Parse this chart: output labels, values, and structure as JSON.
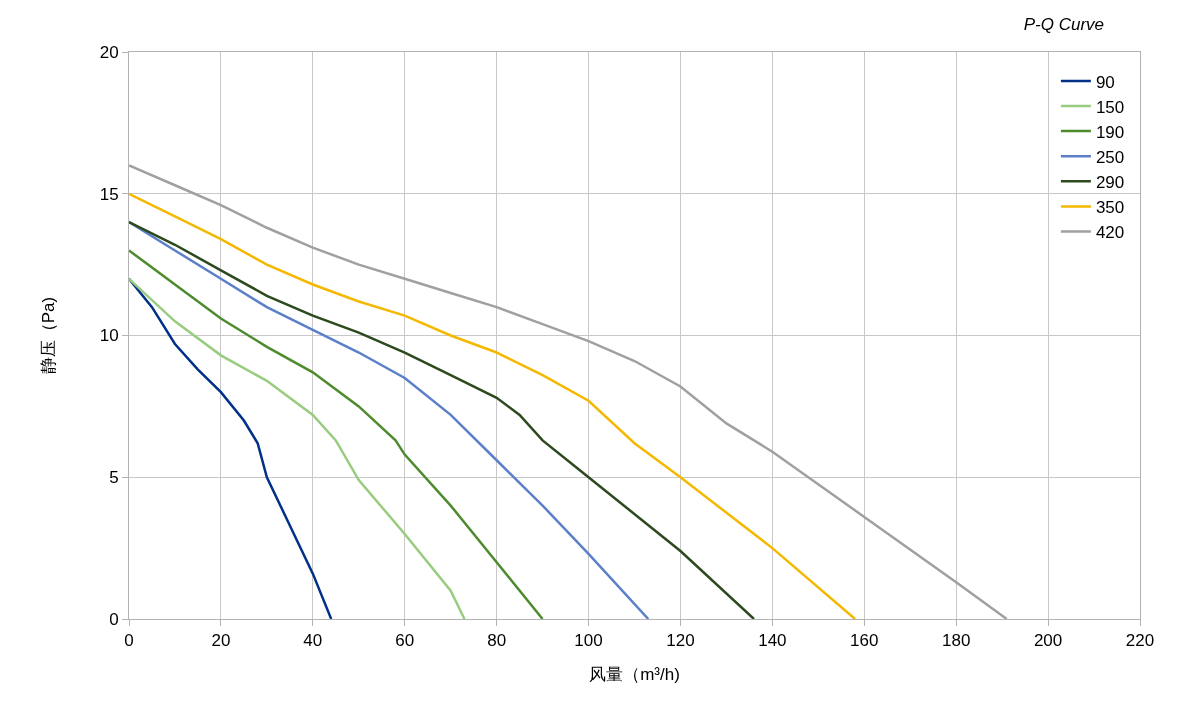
{
  "chart_data": {
    "type": "line",
    "title": "P-Q Curve",
    "xlabel": "风量（m³/h)",
    "ylabel": "静压（Pa)",
    "xlim": [
      0,
      220
    ],
    "xticks": [
      0,
      20,
      40,
      60,
      80,
      100,
      120,
      140,
      160,
      180,
      200,
      220
    ],
    "ylim": [
      0,
      20
    ],
    "yticks": [
      0,
      5,
      10,
      15,
      20
    ],
    "grid": true,
    "legend": "top right",
    "marker": "none",
    "line_style": "solid",
    "series": [
      {
        "name": "90",
        "color": "#003087",
        "x": [
          0,
          5,
          10,
          15,
          20,
          25,
          28,
          30,
          35,
          40,
          44
        ],
        "values": [
          12,
          11,
          9.7,
          8.8,
          8,
          7,
          6.2,
          5,
          3.3,
          1.6,
          0
        ]
      },
      {
        "name": "150",
        "color": "#99cc7f",
        "x": [
          0,
          10,
          20,
          30,
          40,
          45,
          50,
          60,
          70,
          73
        ],
        "values": [
          12,
          10.5,
          9.3,
          8.4,
          7.2,
          6.3,
          4.9,
          3,
          1,
          0
        ]
      },
      {
        "name": "190",
        "color": "#4e8a2e",
        "x": [
          0,
          10,
          20,
          30,
          40,
          50,
          58,
          60,
          70,
          80,
          90
        ],
        "values": [
          13,
          11.8,
          10.6,
          9.6,
          8.7,
          7.5,
          6.3,
          5.8,
          4,
          2,
          0
        ]
      },
      {
        "name": "250",
        "color": "#5b7fc8",
        "x": [
          0,
          10,
          20,
          30,
          40,
          50,
          60,
          70,
          80,
          90,
          100,
          113
        ],
        "values": [
          14,
          13,
          12,
          11,
          10.2,
          9.4,
          8.5,
          7.2,
          5.6,
          4,
          2.3,
          0
        ]
      },
      {
        "name": "290",
        "color": "#2c4a1e",
        "x": [
          0,
          10,
          20,
          30,
          40,
          50,
          60,
          70,
          80,
          85,
          90,
          100,
          120,
          136
        ],
        "values": [
          14,
          13.2,
          12.3,
          11.4,
          10.7,
          10.1,
          9.4,
          8.6,
          7.8,
          7.2,
          6.3,
          5,
          2.4,
          0
        ]
      },
      {
        "name": "350",
        "color": "#f5b800",
        "x": [
          0,
          10,
          20,
          30,
          40,
          50,
          60,
          70,
          80,
          90,
          100,
          110,
          120,
          140,
          158
        ],
        "values": [
          15,
          14.2,
          13.4,
          12.5,
          11.8,
          11.2,
          10.7,
          10,
          9.4,
          8.6,
          7.7,
          6.2,
          5,
          2.5,
          0
        ]
      },
      {
        "name": "420",
        "color": "#a0a0a0",
        "x": [
          0,
          10,
          20,
          30,
          40,
          50,
          60,
          70,
          80,
          90,
          100,
          110,
          120,
          130,
          140,
          160,
          180,
          191
        ],
        "values": [
          16,
          15.3,
          14.6,
          13.8,
          13.1,
          12.5,
          12,
          11.5,
          11,
          10.4,
          9.8,
          9.1,
          8.2,
          6.9,
          5.9,
          3.6,
          1.3,
          0
        ]
      }
    ]
  }
}
